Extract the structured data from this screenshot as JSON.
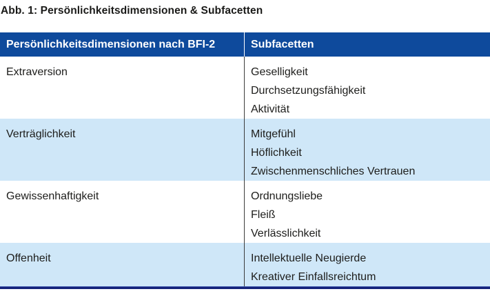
{
  "figure": {
    "title": "Abb. 1: Persönlichkeitsdimensionen & Subfacetten"
  },
  "table": {
    "headers": [
      "Persönlichkeitsdimensionen nach BFI-2",
      "Subfacetten"
    ],
    "rows": [
      {
        "dimension": "Extraversion",
        "subfacets": [
          "Geselligkeit",
          "Durchsetzungsfähigkeit",
          "Aktivität"
        ]
      },
      {
        "dimension": "Verträglichkeit",
        "subfacets": [
          "Mitgefühl",
          "Höflichkeit",
          "Zwischenmenschliches Vertrauen"
        ]
      },
      {
        "dimension": "Gewissenhaftigkeit",
        "subfacets": [
          "Ordnungsliebe",
          "Fleiß",
          "Verlässlichkeit"
        ]
      },
      {
        "dimension": "Offenheit",
        "subfacets": [
          "Intellektuelle Neugierde",
          "Kreativer Einfallsreichtum"
        ]
      }
    ]
  },
  "colors": {
    "header_bg": "#0e4a9c",
    "row_alt_bg": "#cfe7f8",
    "bottom_border": "#14227a",
    "header_text": "#ffffff",
    "body_text": "#1d1d1b"
  }
}
